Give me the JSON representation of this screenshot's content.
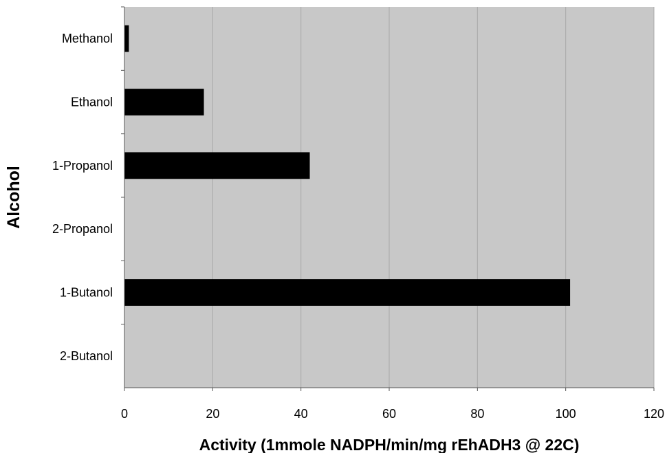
{
  "chart_data": {
    "type": "bar",
    "orientation": "horizontal",
    "categories": [
      "Methanol",
      "Ethanol",
      "1-Propanol",
      "2-Propanol",
      "1-Butanol",
      "2-Butanol"
    ],
    "values": [
      1,
      18,
      42,
      0,
      101,
      0
    ],
    "xlabel": "Activity (1mmole NADPH/min/mg rEhADH3 @ 22C)",
    "ylabel": "Alcohol",
    "xlim": [
      0,
      120
    ],
    "xticks": [
      0,
      20,
      40,
      60,
      80,
      100,
      120
    ],
    "grid": "vertical",
    "legend": "none",
    "colors": {
      "bar": "#000000",
      "plot_background": "#c8c8c8",
      "gridline": "#a8a8a8"
    }
  }
}
